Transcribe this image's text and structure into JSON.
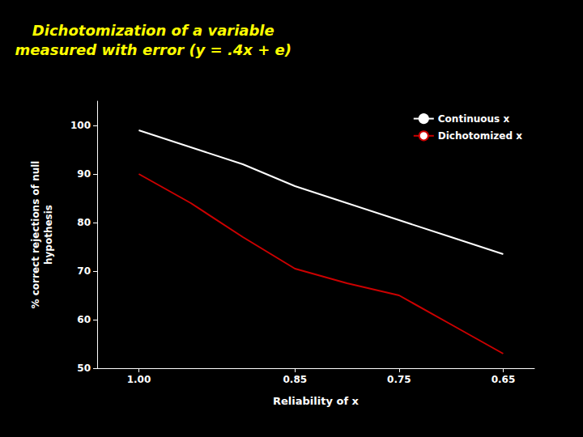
{
  "chart_data": {
    "type": "line",
    "title": "Dichotomization of a variable\nmeasured with error (y = .4x + e)",
    "x_label": "Reliability of x",
    "y_label": "% correct rejections of null\nhypothesis",
    "x": [
      1.0,
      0.95,
      0.9,
      0.85,
      0.8,
      0.75,
      0.7,
      0.65
    ],
    "series": [
      {
        "name": "Continuous x",
        "color": "#FFFFFF",
        "values": [
          99.0,
          95.5,
          92.0,
          87.5,
          84.0,
          80.5,
          77.0,
          73.5
        ]
      },
      {
        "name": "Dichotomized x",
        "color": "#CC0000",
        "values": [
          90.0,
          84.0,
          77.0,
          70.5,
          67.5,
          65.0,
          59.0,
          53.0
        ]
      }
    ],
    "xlim": [
      1.04,
      0.62
    ],
    "xticks": [
      {
        "value": 1.0,
        "label": "1.00"
      },
      0.85,
      0.75,
      0.65
    ],
    "ylim": [
      50,
      105
    ],
    "yticks": [
      50,
      60,
      70,
      80,
      90,
      100
    ],
    "grid": false,
    "legend": "upper right"
  }
}
